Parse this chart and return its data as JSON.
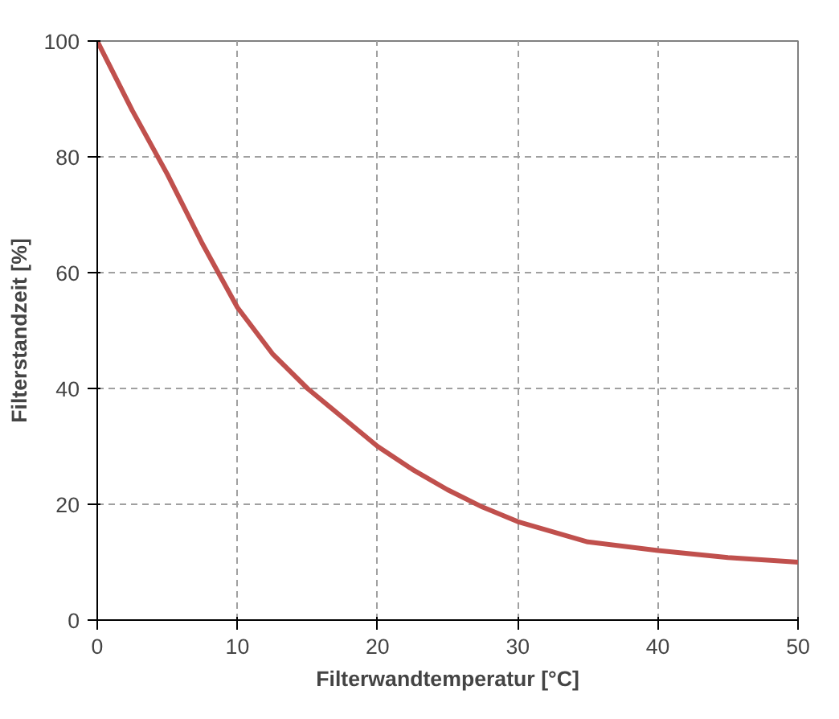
{
  "chart_data": {
    "type": "line",
    "xlabel": "Filterwandtemperatur [°C]",
    "ylabel": "Filterstandzeit [%]",
    "x": [
      0,
      2.5,
      5,
      7.5,
      10,
      12.5,
      15,
      17.5,
      20,
      22.5,
      25,
      27.5,
      30,
      35,
      40,
      45,
      50
    ],
    "series": [
      {
        "color": "#c0504d",
        "values": [
          100,
          88,
          77,
          65,
          54,
          46,
          40,
          35,
          30,
          26,
          22.5,
          19.5,
          17,
          13.5,
          12,
          10.8,
          10
        ]
      }
    ],
    "xlim": [
      0,
      50
    ],
    "ylim": [
      0,
      100
    ],
    "xticks": [
      0,
      10,
      20,
      30,
      40,
      50
    ],
    "yticks": [
      0,
      20,
      40,
      60,
      80,
      100
    ],
    "grid": true,
    "marker": "none",
    "line_style": "solid"
  }
}
